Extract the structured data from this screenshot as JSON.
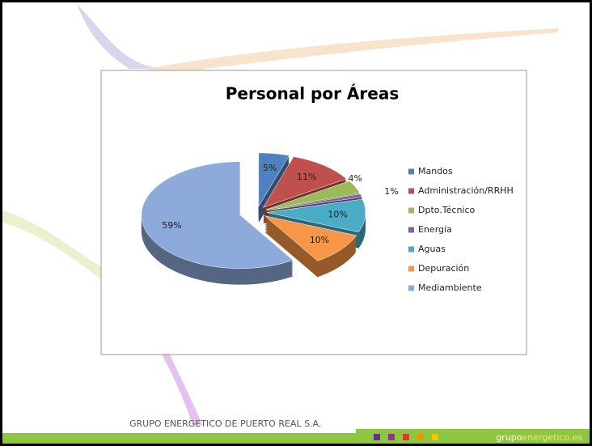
{
  "chart_data": {
    "type": "pie",
    "title": "Personal por Áreas",
    "categories": [
      "Mandos",
      "Administración/RRHH",
      "Dpto.Técnico",
      "Energía",
      "Aguas",
      "Depuración",
      "Mediambiente"
    ],
    "values": [
      5,
      11,
      4,
      1,
      10,
      10,
      59
    ],
    "value_labels": [
      "5%",
      "11%",
      "4%",
      "1%",
      "10%",
      "10%",
      "59%"
    ],
    "colors": [
      "#4f81bd",
      "#c0504d",
      "#9bbb59",
      "#8064a2",
      "#4bacc6",
      "#f79646",
      "#8eaadb"
    ],
    "legend": "right"
  },
  "footer": {
    "company": "GRUPO ENERGETICO DE PUERTO REAL S.A.",
    "brand_prefix": "grupo",
    "brand_suffix": "energetico.es"
  }
}
